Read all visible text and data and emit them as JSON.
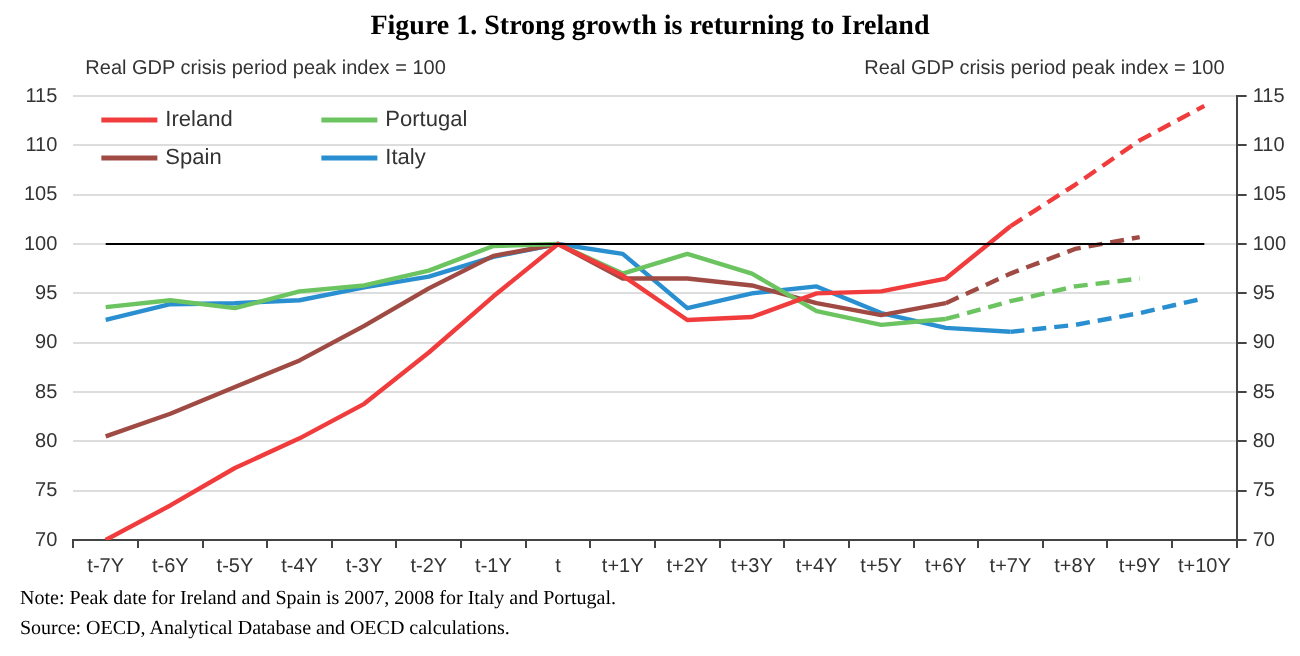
{
  "chart_data": {
    "type": "line",
    "title": "Figure 1.  Strong growth is returning to Ireland",
    "ylabel": "Real GDP crisis period peak index = 100",
    "y2label": "Real GDP crisis period peak index = 100",
    "categories": [
      "t-7Y",
      "t-6Y",
      "t-5Y",
      "t-4Y",
      "t-3Y",
      "t-2Y",
      "t-1Y",
      "t",
      "t+1Y",
      "t+2Y",
      "t+3Y",
      "t+4Y",
      "t+5Y",
      "t+6Y",
      "t+7Y",
      "t+8Y",
      "t+9Y",
      "t+10Y"
    ],
    "series": [
      {
        "name": "Ireland",
        "color": "#f03c3c",
        "line_style": "solid",
        "values": [
          70,
          73.5,
          77.3,
          80.3,
          83.8,
          89,
          94.7,
          100,
          96.8,
          92.3,
          92.6,
          95,
          95.2,
          96.5,
          101.8,
          null,
          null,
          null
        ]
      },
      {
        "name": "Portugal",
        "color": "#6cc460",
        "line_style": "solid",
        "values": [
          93.6,
          94.3,
          93.5,
          95.2,
          95.8,
          97.3,
          99.8,
          100,
          97,
          99,
          97,
          93.2,
          91.8,
          92.4,
          null,
          null,
          null,
          null
        ]
      },
      {
        "name": "Spain",
        "color": "#a04a44",
        "line_style": "solid",
        "values": [
          80.5,
          82.8,
          85.5,
          88.2,
          91.7,
          95.5,
          98.8,
          100,
          96.5,
          96.5,
          95.8,
          94,
          92.8,
          94,
          null,
          null,
          null,
          null
        ]
      },
      {
        "name": "Italy",
        "color": "#2a8fd0",
        "line_style": "solid",
        "values": [
          92.3,
          93.9,
          94,
          94.3,
          95.6,
          96.7,
          98.7,
          100,
          99,
          93.5,
          95,
          95.7,
          93,
          91.5,
          91.1,
          null,
          null,
          null
        ]
      },
      {
        "color": "#f03c3c",
        "line_style": "dashed",
        "values": [
          null,
          null,
          null,
          null,
          null,
          null,
          null,
          null,
          null,
          null,
          null,
          null,
          null,
          null,
          101.8,
          106,
          110.5,
          114
        ]
      },
      {
        "color": "#6cc460",
        "line_style": "dashed",
        "values": [
          null,
          null,
          null,
          null,
          null,
          null,
          null,
          null,
          null,
          null,
          null,
          null,
          null,
          92.4,
          94.2,
          95.7,
          96.5,
          null
        ]
      },
      {
        "color": "#a04a44",
        "line_style": "dashed",
        "values": [
          null,
          null,
          null,
          null,
          null,
          null,
          null,
          null,
          null,
          null,
          null,
          null,
          null,
          94,
          97,
          99.5,
          100.7,
          null
        ]
      },
      {
        "color": "#2a8fd0",
        "line_style": "dashed",
        "values": [
          null,
          null,
          null,
          null,
          null,
          null,
          null,
          null,
          null,
          null,
          null,
          null,
          null,
          null,
          91.1,
          91.8,
          93,
          94.5
        ]
      }
    ],
    "ylim": [
      70,
      115
    ],
    "yticks": [
      70,
      75,
      80,
      85,
      90,
      95,
      100,
      105,
      110,
      115
    ],
    "y2lim": [
      70,
      115
    ],
    "y2ticks": [
      70,
      75,
      80,
      85,
      90,
      95,
      100,
      105,
      110,
      115
    ],
    "ref_lines": [
      {
        "axis": "y",
        "value": 100,
        "color": "#000000"
      }
    ],
    "grid": "y",
    "legend": "top left",
    "marker": "none",
    "annotations": [
      "Note:  Peak date for Ireland and Spain is 2007, 2008 for Italy and Portugal.",
      "Source:  OECD, Analytical Database and OECD calculations."
    ]
  }
}
